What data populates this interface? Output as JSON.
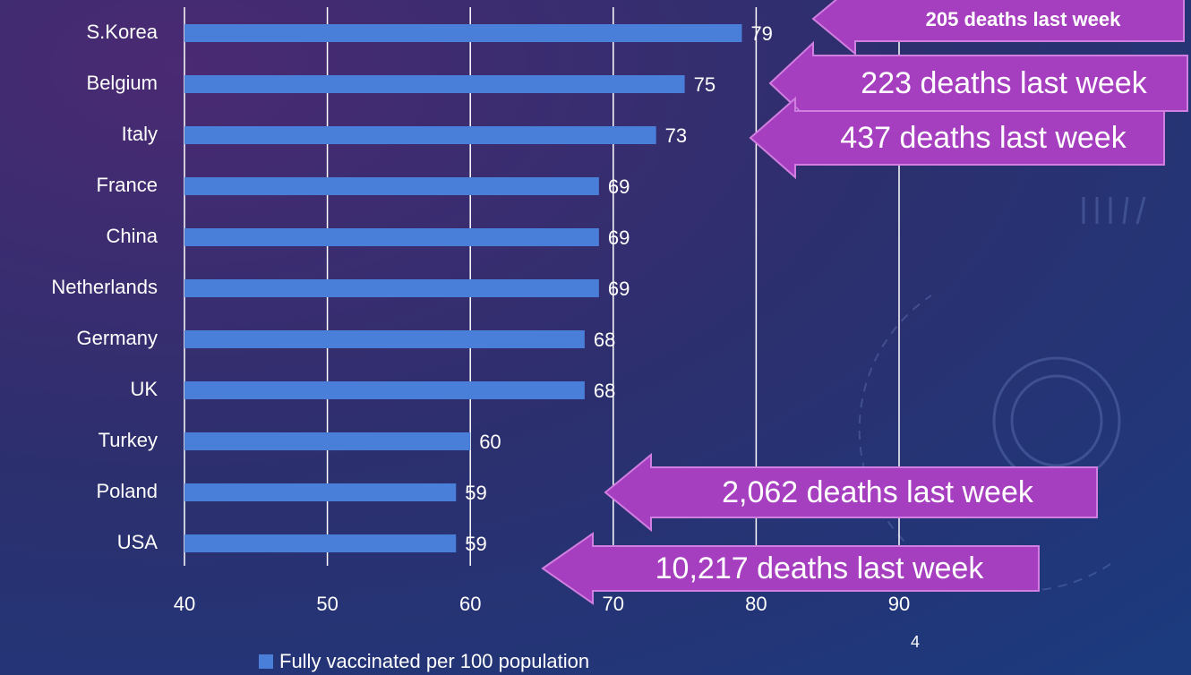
{
  "chart_data": {
    "type": "bar",
    "orientation": "horizontal",
    "categories": [
      "S.Korea",
      "Belgium",
      "Italy",
      "France",
      "China",
      "Netherlands",
      "Germany",
      "UK",
      "Turkey",
      "Poland",
      "USA"
    ],
    "series": [
      {
        "name": "Fully vaccinated per 100 population",
        "color": "#4a7fd9",
        "values": [
          79,
          75,
          73,
          69,
          69,
          69,
          68,
          68,
          60,
          59,
          59
        ]
      }
    ],
    "xlim": [
      40,
      90
    ],
    "xticks": [
      40,
      50,
      60,
      70,
      80,
      90
    ],
    "grid": true,
    "legend": "bottom",
    "annotations": [
      "205 deaths last week",
      "223 deaths last week",
      "437 deaths last week",
      "2,062 deaths last week",
      "10,217 deaths last week"
    ],
    "slide_number": "4"
  }
}
